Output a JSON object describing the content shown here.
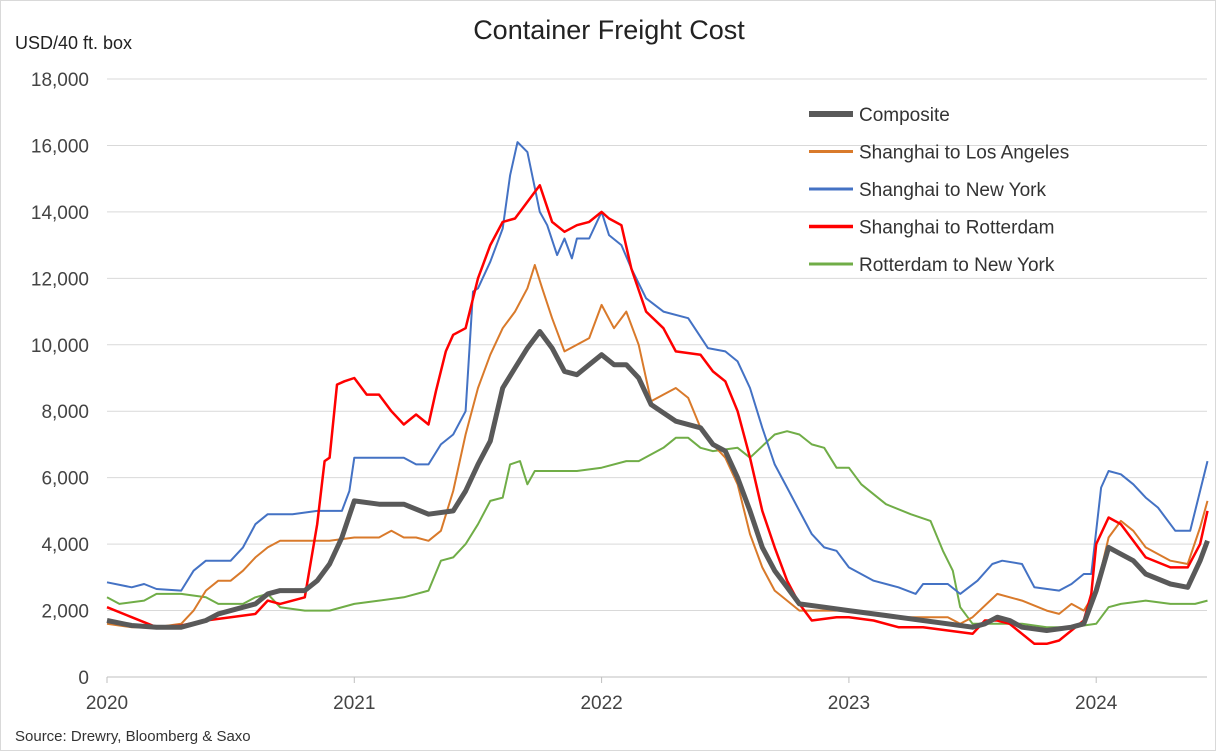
{
  "chart_data": {
    "type": "line",
    "title": "Container Freight Cost",
    "ylabel": "USD/40 ft. box",
    "xlabel": "",
    "source": "Source: Drewry, Bloomberg & Saxo",
    "ylim": [
      0,
      18000
    ],
    "yticks": [
      0,
      2000,
      4000,
      6000,
      8000,
      10000,
      12000,
      14000,
      16000,
      18000
    ],
    "ytick_labels": [
      "0",
      "2,000",
      "4,000",
      "6,000",
      "8,000",
      "10,000",
      "12,000",
      "14,000",
      "16,000",
      "18,000"
    ],
    "xlim": [
      2020,
      2024.45
    ],
    "xticks": [
      2020,
      2021,
      2022,
      2023,
      2024
    ],
    "xtick_labels": [
      "2020",
      "2021",
      "2022",
      "2023",
      "2024"
    ],
    "grid": "horizontal",
    "legend": "top-right",
    "series": [
      {
        "name": "Composite",
        "color": "#595959",
        "width": 5,
        "x": [
          2020.0,
          2020.1,
          2020.2,
          2020.3,
          2020.4,
          2020.45,
          2020.5,
          2020.6,
          2020.65,
          2020.7,
          2020.8,
          2020.85,
          2020.9,
          2020.95,
          2021.0,
          2021.1,
          2021.2,
          2021.3,
          2021.4,
          2021.45,
          2021.5,
          2021.55,
          2021.6,
          2021.65,
          2021.7,
          2021.75,
          2021.8,
          2021.85,
          2021.9,
          2021.95,
          2022.0,
          2022.05,
          2022.1,
          2022.15,
          2022.2,
          2022.3,
          2022.4,
          2022.45,
          2022.5,
          2022.55,
          2022.6,
          2022.65,
          2022.7,
          2022.75,
          2022.8,
          2022.9,
          2023.0,
          2023.1,
          2023.2,
          2023.3,
          2023.4,
          2023.5,
          2023.55,
          2023.6,
          2023.65,
          2023.7,
          2023.8,
          2023.9,
          2023.95,
          2024.0,
          2024.05,
          2024.1,
          2024.15,
          2024.2,
          2024.3,
          2024.37,
          2024.42,
          2024.45
        ],
        "y": [
          1700,
          1550,
          1500,
          1500,
          1700,
          1900,
          2000,
          2200,
          2500,
          2600,
          2600,
          2900,
          3400,
          4200,
          5300,
          5200,
          5200,
          4900,
          5000,
          5600,
          6400,
          7100,
          8700,
          9300,
          9900,
          10400,
          9900,
          9200,
          9100,
          9400,
          9700,
          9400,
          9400,
          9000,
          8200,
          7700,
          7500,
          7000,
          6800,
          6000,
          5000,
          3900,
          3200,
          2700,
          2200,
          2100,
          2000,
          1900,
          1800,
          1700,
          1600,
          1500,
          1600,
          1800,
          1700,
          1500,
          1400,
          1500,
          1600,
          2600,
          3900,
          3700,
          3500,
          3100,
          2800,
          2700,
          3500,
          4100
        ]
      },
      {
        "name": "Shanghai to Los Angeles",
        "color": "#D97A2B",
        "width": 2,
        "x": [
          2020.0,
          2020.1,
          2020.2,
          2020.3,
          2020.35,
          2020.4,
          2020.45,
          2020.5,
          2020.55,
          2020.6,
          2020.65,
          2020.7,
          2020.8,
          2020.9,
          2021.0,
          2021.1,
          2021.15,
          2021.2,
          2021.25,
          2021.3,
          2021.35,
          2021.4,
          2021.45,
          2021.5,
          2021.55,
          2021.6,
          2021.65,
          2021.7,
          2021.73,
          2021.76,
          2021.8,
          2021.85,
          2021.9,
          2021.95,
          2022.0,
          2022.05,
          2022.1,
          2022.15,
          2022.2,
          2022.25,
          2022.3,
          2022.35,
          2022.4,
          2022.45,
          2022.5,
          2022.55,
          2022.6,
          2022.65,
          2022.7,
          2022.75,
          2022.8,
          2022.9,
          2023.0,
          2023.1,
          2023.2,
          2023.3,
          2023.4,
          2023.45,
          2023.5,
          2023.6,
          2023.7,
          2023.8,
          2023.85,
          2023.9,
          2023.95,
          2024.0,
          2024.05,
          2024.1,
          2024.15,
          2024.2,
          2024.3,
          2024.37,
          2024.42,
          2024.45
        ],
        "y": [
          1600,
          1500,
          1500,
          1600,
          2000,
          2600,
          2900,
          2900,
          3200,
          3600,
          3900,
          4100,
          4100,
          4100,
          4200,
          4200,
          4400,
          4200,
          4200,
          4100,
          4400,
          5600,
          7300,
          8700,
          9700,
          10500,
          11000,
          11700,
          12400,
          11700,
          10800,
          9800,
          10000,
          10200,
          11200,
          10500,
          11000,
          10000,
          8300,
          8500,
          8700,
          8400,
          7500,
          7000,
          6600,
          5800,
          4300,
          3300,
          2600,
          2300,
          2000,
          2000,
          2000,
          1900,
          1800,
          1800,
          1800,
          1600,
          1800,
          2500,
          2300,
          2000,
          1900,
          2200,
          2000,
          2600,
          4200,
          4700,
          4400,
          3900,
          3500,
          3400,
          4500,
          5300
        ]
      },
      {
        "name": "Shanghai to New York",
        "color": "#4472C4",
        "width": 2,
        "x": [
          2020.0,
          2020.1,
          2020.15,
          2020.2,
          2020.3,
          2020.35,
          2020.4,
          2020.5,
          2020.55,
          2020.6,
          2020.65,
          2020.75,
          2020.85,
          2020.95,
          2020.98,
          2021.0,
          2021.1,
          2021.2,
          2021.25,
          2021.3,
          2021.35,
          2021.4,
          2021.45,
          2021.48,
          2021.5,
          2021.55,
          2021.6,
          2021.63,
          2021.66,
          2021.7,
          2021.75,
          2021.78,
          2021.82,
          2021.85,
          2021.88,
          2021.9,
          2021.95,
          2022.0,
          2022.03,
          2022.08,
          2022.12,
          2022.18,
          2022.25,
          2022.35,
          2022.43,
          2022.5,
          2022.55,
          2022.6,
          2022.65,
          2022.7,
          2022.75,
          2022.8,
          2022.85,
          2022.9,
          2022.95,
          2023.0,
          2023.1,
          2023.2,
          2023.27,
          2023.3,
          2023.4,
          2023.45,
          2023.52,
          2023.58,
          2023.62,
          2023.7,
          2023.75,
          2023.85,
          2023.9,
          2023.95,
          2023.98,
          2024.02,
          2024.05,
          2024.1,
          2024.15,
          2024.2,
          2024.25,
          2024.32,
          2024.38,
          2024.45
        ],
        "y": [
          2850,
          2700,
          2800,
          2650,
          2600,
          3200,
          3500,
          3500,
          3900,
          4600,
          4900,
          4900,
          5000,
          5000,
          5600,
          6600,
          6600,
          6600,
          6400,
          6400,
          7000,
          7300,
          8000,
          11600,
          11700,
          12500,
          13500,
          15100,
          16100,
          15800,
          14000,
          13600,
          12700,
          13200,
          12600,
          13200,
          13200,
          14000,
          13300,
          13000,
          12300,
          11400,
          11000,
          10800,
          9900,
          9800,
          9500,
          8700,
          7500,
          6400,
          5700,
          5000,
          4300,
          3900,
          3800,
          3300,
          2900,
          2700,
          2500,
          2800,
          2800,
          2500,
          2900,
          3400,
          3500,
          3400,
          2700,
          2600,
          2800,
          3100,
          3100,
          5700,
          6200,
          6100,
          5800,
          5400,
          5100,
          4400,
          4400,
          6500
        ]
      },
      {
        "name": "Shanghai to Rotterdam",
        "color": "#FF0000",
        "width": 2.5,
        "x": [
          2020.0,
          2020.1,
          2020.2,
          2020.3,
          2020.4,
          2020.5,
          2020.6,
          2020.65,
          2020.7,
          2020.8,
          2020.85,
          2020.88,
          2020.9,
          2020.93,
          2020.96,
          2021.0,
          2021.05,
          2021.1,
          2021.15,
          2021.2,
          2021.25,
          2021.3,
          2021.33,
          2021.37,
          2021.4,
          2021.45,
          2021.5,
          2021.55,
          2021.6,
          2021.65,
          2021.7,
          2021.75,
          2021.8,
          2021.85,
          2021.9,
          2021.95,
          2022.0,
          2022.03,
          2022.08,
          2022.12,
          2022.18,
          2022.25,
          2022.3,
          2022.4,
          2022.45,
          2022.5,
          2022.55,
          2022.6,
          2022.65,
          2022.7,
          2022.75,
          2022.8,
          2022.85,
          2022.95,
          2023.0,
          2023.1,
          2023.2,
          2023.3,
          2023.4,
          2023.5,
          2023.55,
          2023.6,
          2023.65,
          2023.7,
          2023.75,
          2023.8,
          2023.85,
          2023.95,
          2023.98,
          2024.0,
          2024.05,
          2024.1,
          2024.15,
          2024.2,
          2024.3,
          2024.37,
          2024.42,
          2024.45
        ],
        "y": [
          2100,
          1800,
          1500,
          1550,
          1700,
          1800,
          1900,
          2300,
          2200,
          2400,
          4600,
          6500,
          6600,
          8800,
          8900,
          9000,
          8500,
          8500,
          8000,
          7600,
          7900,
          7600,
          8600,
          9800,
          10300,
          10500,
          12000,
          13000,
          13700,
          13800,
          14300,
          14800,
          13700,
          13400,
          13600,
          13700,
          14000,
          13800,
          13600,
          12300,
          11000,
          10500,
          9800,
          9700,
          9200,
          8900,
          8000,
          6600,
          5000,
          3900,
          2900,
          2200,
          1700,
          1800,
          1800,
          1700,
          1500,
          1500,
          1400,
          1300,
          1700,
          1700,
          1600,
          1300,
          1000,
          1000,
          1100,
          1700,
          2500,
          4000,
          4800,
          4600,
          4100,
          3600,
          3300,
          3300,
          4000,
          5000
        ]
      },
      {
        "name": "Rotterdam to New York",
        "color": "#70AD47",
        "width": 2,
        "x": [
          2020.0,
          2020.05,
          2020.15,
          2020.2,
          2020.3,
          2020.4,
          2020.45,
          2020.55,
          2020.6,
          2020.65,
          2020.7,
          2020.8,
          2020.9,
          2021.0,
          2021.1,
          2021.2,
          2021.3,
          2021.35,
          2021.4,
          2021.45,
          2021.5,
          2021.55,
          2021.6,
          2021.63,
          2021.67,
          2021.7,
          2021.73,
          2021.8,
          2021.9,
          2022.0,
          2022.1,
          2022.15,
          2022.25,
          2022.3,
          2022.35,
          2022.4,
          2022.45,
          2022.55,
          2022.6,
          2022.7,
          2022.75,
          2022.8,
          2022.85,
          2022.9,
          2022.95,
          2023.0,
          2023.05,
          2023.15,
          2023.25,
          2023.33,
          2023.38,
          2023.42,
          2023.45,
          2023.5,
          2023.6,
          2023.7,
          2023.8,
          2023.9,
          2024.0,
          2024.05,
          2024.1,
          2024.2,
          2024.3,
          2024.4,
          2024.45
        ],
        "y": [
          2400,
          2200,
          2300,
          2500,
          2500,
          2400,
          2200,
          2200,
          2400,
          2500,
          2100,
          2000,
          2000,
          2200,
          2300,
          2400,
          2600,
          3500,
          3600,
          4000,
          4600,
          5300,
          5400,
          6400,
          6500,
          5800,
          6200,
          6200,
          6200,
          6300,
          6500,
          6500,
          6900,
          7200,
          7200,
          6900,
          6800,
          6900,
          6600,
          7300,
          7400,
          7300,
          7000,
          6900,
          6300,
          6300,
          5800,
          5200,
          4900,
          4700,
          3800,
          3200,
          2100,
          1600,
          1600,
          1600,
          1500,
          1500,
          1600,
          2100,
          2200,
          2300,
          2200,
          2200,
          2300
        ]
      }
    ]
  }
}
